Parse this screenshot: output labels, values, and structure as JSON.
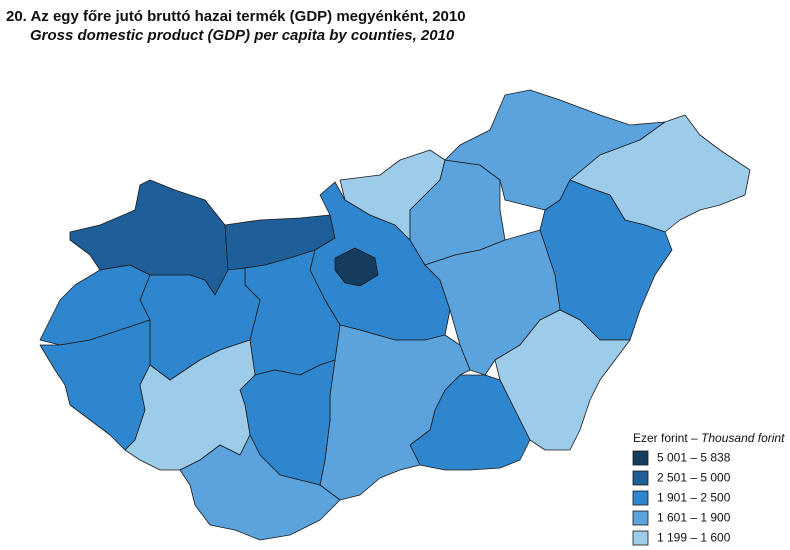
{
  "title": "20. Az egy főre jutó bruttó hazai termék (GDP) megyénként, 2010",
  "subtitle": "Gross domestic product (GDP) per capita by counties, 2010",
  "legend": {
    "title": "Ezer forint –",
    "title_en": "Thousand forint",
    "items": [
      {
        "label": "5 001 – 5 838",
        "color": "#133c5e"
      },
      {
        "label": "2 501 – 5 000",
        "color": "#1f5f99"
      },
      {
        "label": "1 901 – 2 500",
        "color": "#2e86cf"
      },
      {
        "label": "1 601 – 1 900",
        "color": "#5ba3dc"
      },
      {
        "label": "1 199 – 1 600",
        "color": "#9dcbea"
      }
    ]
  }
}
